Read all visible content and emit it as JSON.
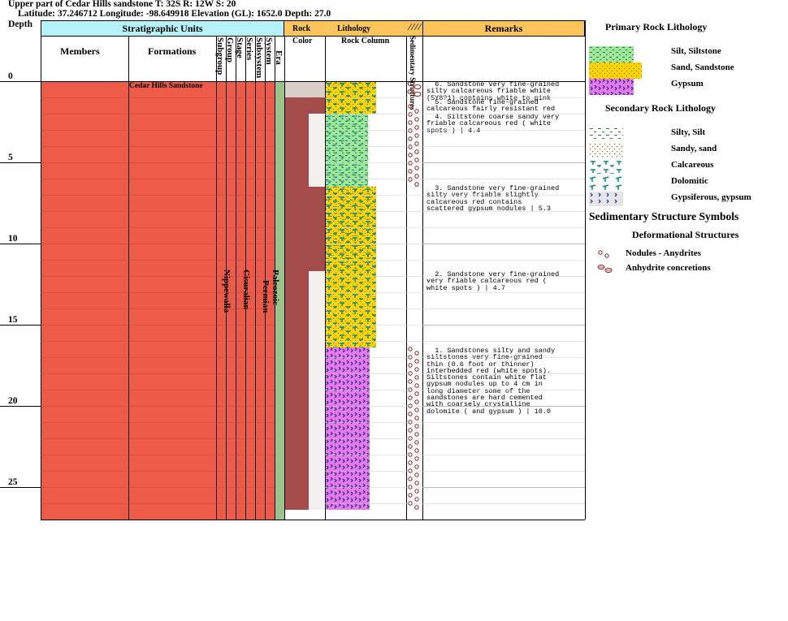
{
  "header": {
    "title": "Upper part of Cedar Hills sandstone T: 32S R: 12W S: 20",
    "coords": "Latitude: 37.246712 Longitude: -98.649918 Elevation (GL): 1652.0 Depth: 27.0"
  },
  "columns": {
    "depth": "Depth",
    "strat_units": "Stratigraphic Units",
    "members": "Members",
    "formations": "Formations",
    "subgroup": "Subgroup",
    "group": "Group",
    "stage": "Stage",
    "series": "Series",
    "subsystem": "Subsystem",
    "system": "System",
    "era": "Era",
    "rock": "Rock",
    "color": "Color",
    "lithology": "Lithology",
    "rock_column": "Rock Column",
    "sed_structures": "Sedimentary Structures",
    "remarks": "Remarks"
  },
  "depth_ticks": [
    "0",
    "5",
    "10",
    "15",
    "20",
    "25"
  ],
  "strat_values": {
    "formation": "Cedar Hills Sandstone",
    "group": "Nippewalla",
    "series": "Cisuralian",
    "system": "Permian",
    "era": "Paleozoic"
  },
  "remarks": [
    "  6. Sandstone very fine-grained\nsilty calcareous friable white\n(5Y8?1) contains white to pink",
    "  5. Sandstone fine-grained\ncalcareous fairly resistant red",
    "  4. Siltstone coarse sandy very\nfriable calcareous red ( white\nspots ) | 4.4",
    "  3. Sandstone very fine-grained\nsilty very friable slightly\ncalcareous red contains\nscattered gypsum nodules | 5.3",
    "  2. Sandstone very fine-grained\nvery friable calcareous red (\nwhite spots ) | 4.7",
    "  1. Sandstones silty and sandy\nsiltstones very fine-grained\nthin (0.6 foot or thinner)\ninterbedded red (white spots).\nSiltstones contain white flat\ngypsum nodules up to 4 cm in\nlong diameter some of the\nsandstones are hard cemented\nwith coarsely crystalline\ndolomite ( and gypsum ) | 10.0"
  ],
  "legend": {
    "primary_title": "Primary Rock Lithology",
    "primary": [
      "Silt, Siltstone",
      "Sand, Sandstone",
      "Gypsum"
    ],
    "secondary_title": "Secondary Rock Lithology",
    "secondary": [
      "Silty, Silt",
      "Sandy, sand",
      "Calcareous",
      "Dolomitic",
      "Gypsiferous, gypsum"
    ],
    "sed_title": "Sedimentary Structure Symbols",
    "deform_title": "Deformational Structures",
    "deform": [
      "Nodules - Anydrites",
      "Anhydrite concretions"
    ]
  },
  "colors": {
    "strat_fill": "#ee5a48",
    "era_fill": "#9cc38a",
    "rock_red": "#a44b4b",
    "rock_pale": "#d9cec8",
    "silt": "#9ee89e",
    "sand": "#ffd400",
    "gypsum": "#e879e8",
    "header_cyan": "#b6f2fa",
    "header_orange": "#fbc55c"
  }
}
